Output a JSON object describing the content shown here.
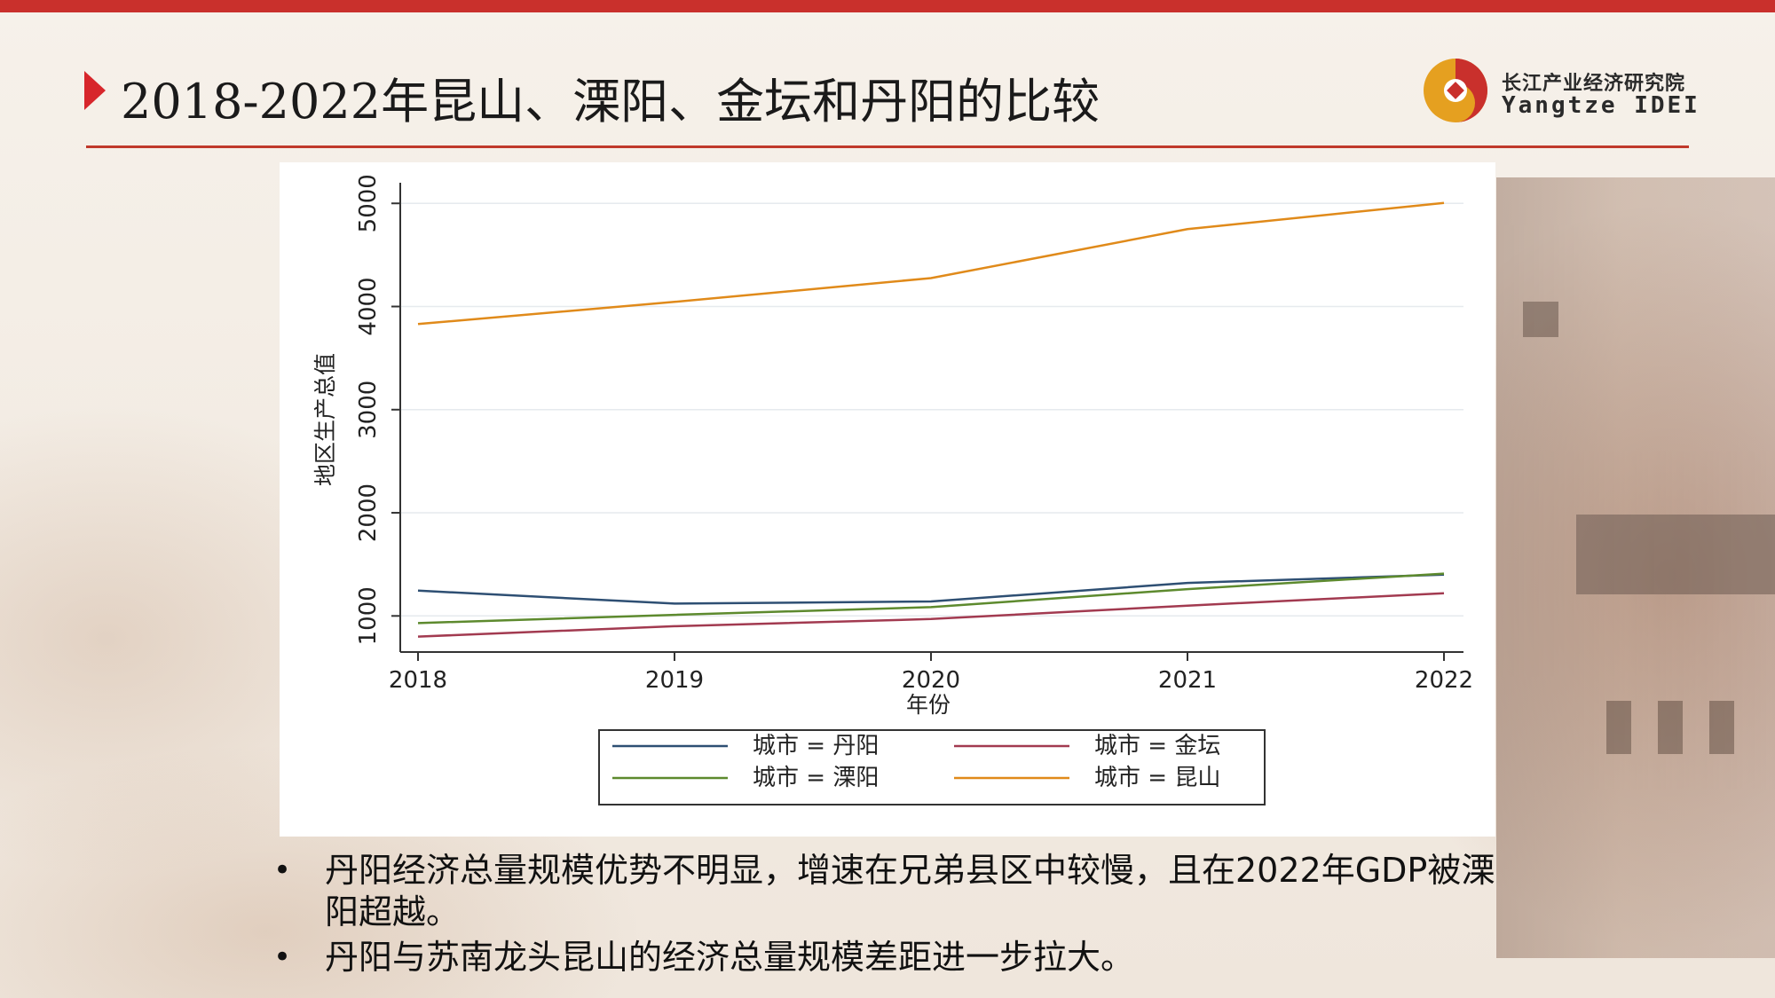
{
  "slide": {
    "title": "2018-2022年昆山、溧阳、金坛和丹阳的比较"
  },
  "logo": {
    "name_cn": "长江产业经济研究院",
    "name_en": "Yangtze IDEI"
  },
  "colors": {
    "accent_red": "#c9302c",
    "series_danyang": "#2e4f73",
    "series_liyang": "#5d8a2e",
    "series_jintan": "#a23a50",
    "series_kunshan": "#e08a1a"
  },
  "chart_data": {
    "type": "line",
    "x": [
      2018,
      2019,
      2020,
      2021,
      2022
    ],
    "xlabel": "年份",
    "ylabel": "地区生产总值",
    "xlim": [
      2018,
      2022
    ],
    "ylim": [
      650,
      5200
    ],
    "yticks": [
      1000,
      2000,
      3000,
      4000,
      5000
    ],
    "grid": true,
    "legend_position": "bottom",
    "series": [
      {
        "name": "城市 = 丹阳",
        "color": "#2e4f73",
        "values": [
          1245,
          1120,
          1140,
          1320,
          1400
        ]
      },
      {
        "name": "城市 = 金坛",
        "color": "#a23a50",
        "values": [
          800,
          900,
          970,
          1100,
          1220
        ]
      },
      {
        "name": "城市 = 溧阳",
        "color": "#5d8a2e",
        "values": [
          930,
          1010,
          1085,
          1260,
          1410
        ]
      },
      {
        "name": "城市 = 昆山",
        "color": "#e08a1a",
        "values": [
          3830,
          4045,
          4275,
          4750,
          5005
        ]
      }
    ]
  },
  "bullets": [
    "丹阳经济总量规模优势不明显，增速在兄弟县区中较慢，且在2022年GDP被溧阳超越。",
    "丹阳与苏南龙头昆山的经济总量规模差距进一步拉大。"
  ]
}
